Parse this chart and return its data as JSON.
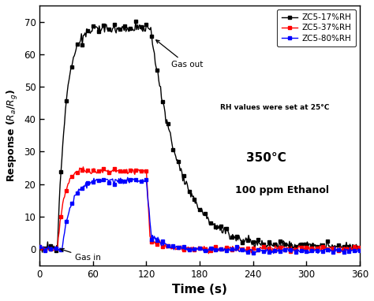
{
  "title": "",
  "xlabel": "Time (s)",
  "ylabel": "Response ($R_a$/$R_g$)",
  "xlim": [
    0,
    360
  ],
  "ylim": [
    -5,
    75
  ],
  "yticks": [
    0,
    10,
    20,
    30,
    40,
    50,
    60,
    70
  ],
  "xticks": [
    0,
    60,
    120,
    180,
    240,
    300,
    360
  ],
  "legend_labels": [
    "ZC5-17%RH",
    "ZC5-37%RH",
    "ZC5-80%RH"
  ],
  "colors": [
    "#000000",
    "#ff0000",
    "#0000ff"
  ],
  "annotation_gas_in": "Gas in",
  "annotation_gas_out": "Gas out",
  "text_temp": "350°C",
  "text_ethanol": "100 ppm Ethanol",
  "text_rh": "RH values were set at 25°C",
  "background_color": "#ffffff"
}
